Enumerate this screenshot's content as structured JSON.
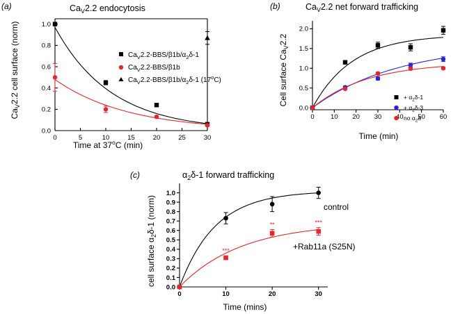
{
  "chart_data": [
    {
      "panel": "(a)",
      "type": "scatter",
      "title": "CaV2.2 endocytosis",
      "xlabel": "Time at 37°C (min)",
      "ylabel": "CaV2.2 cell surface (norm)",
      "xlim": [
        0,
        30
      ],
      "ylim": [
        0,
        1.05
      ],
      "xticks": [
        0,
        5,
        10,
        15,
        20,
        25,
        30
      ],
      "yticks": [
        0.0,
        0.2,
        0.4,
        0.6,
        0.8,
        1.0
      ],
      "xtick_labels": [
        "0",
        "5",
        "10",
        "15",
        "20",
        "25",
        "30"
      ],
      "ytick_labels": [
        "0.0",
        "0.2",
        "0.4",
        "0.6",
        "0.8",
        "1.0"
      ],
      "series": [
        {
          "name": "CaV2.2-BBS/β1b/α2δ-1",
          "marker": "square",
          "color": "#000000",
          "x": [
            0,
            10,
            20,
            30
          ],
          "y": [
            1.0,
            0.45,
            0.24,
            0.06
          ],
          "err": [
            0,
            0.02,
            0.015,
            0.015
          ],
          "fit": {
            "a": 0.97,
            "k": 0.09,
            "c": 0.0
          }
        },
        {
          "name": "CaV2.2-BBS/β1b",
          "marker": "circle",
          "color": "#e8262a",
          "x": [
            0,
            10,
            20,
            30
          ],
          "y": [
            0.5,
            0.2,
            0.13,
            0.05
          ],
          "err": [
            0.13,
            0.03,
            0.01,
            0.01
          ],
          "fit": {
            "a": 0.48,
            "k": 0.07,
            "c": 0.0
          }
        },
        {
          "name": "CaV2.2-BBS/β1b/α2δ-1 (17°C)",
          "marker": "triangle",
          "color": "#000000",
          "x": [
            30
          ],
          "y": [
            0.87
          ],
          "err": [
            0.06
          ]
        }
      ]
    },
    {
      "panel": "(b)",
      "type": "scatter",
      "title": "CaV2.2 net forward trafficking",
      "xlabel": "Time (min)",
      "ylabel": "Cell surface CaV2.2",
      "xlim": [
        0,
        60
      ],
      "ylim": [
        -0.05,
        2.2
      ],
      "xticks": [
        0,
        10,
        20,
        30,
        40,
        50,
        60
      ],
      "yticks": [
        0.0,
        0.5,
        1.0,
        1.5,
        2.0
      ],
      "xtick_labels": [
        "0",
        "10",
        "20",
        "30",
        "40",
        "50",
        "60"
      ],
      "ytick_labels": [
        "0.0",
        "0.5",
        "1.0",
        "1.5",
        "2.0"
      ],
      "series": [
        {
          "name": "+ α2δ-1",
          "marker": "square",
          "color": "#000000",
          "x": [
            0,
            15,
            30,
            45,
            60
          ],
          "y": [
            0.0,
            1.15,
            1.58,
            1.53,
            1.96
          ],
          "err": [
            0,
            0.04,
            0.08,
            0.09,
            0.1
          ],
          "fit": {
            "a": 1.85,
            "k": 0.055,
            "c": 0.0
          }
        },
        {
          "name": "+ α2δ-3",
          "marker": "circle",
          "color": "#2424e6",
          "x": [
            0,
            15,
            30,
            45,
            60
          ],
          "y": [
            0.0,
            0.52,
            0.74,
            1.08,
            1.23
          ],
          "err": [
            0,
            0.03,
            0.04,
            0.05,
            0.06
          ],
          "fit": {
            "a": 1.62,
            "k": 0.025,
            "c": 0.0
          }
        },
        {
          "name": "no α2δ",
          "marker": "circle",
          "color": "#e8262a",
          "x": [
            0,
            15,
            30,
            45,
            60
          ],
          "y": [
            0.0,
            0.48,
            0.87,
            0.99,
            1.0
          ],
          "err": [
            0,
            0.02,
            0.03,
            0.03,
            0.03
          ],
          "fit": {
            "a": 1.15,
            "k": 0.04,
            "c": 0.0
          }
        }
      ]
    },
    {
      "panel": "(c)",
      "type": "scatter",
      "title": "α2δ-1 forward trafficking",
      "xlabel": "Time (mins)",
      "ylabel": "cell surface α2δ-1 (norm)",
      "xlim": [
        0,
        32
      ],
      "ylim": [
        0,
        1.1
      ],
      "xticks": [
        0,
        10,
        20,
        30
      ],
      "yticks": [
        0.0,
        0.1,
        0.2,
        0.3,
        0.4,
        0.5,
        0.6,
        0.7,
        0.8,
        0.9,
        1.0
      ],
      "xtick_labels": [
        "0",
        "10",
        "20",
        "30"
      ],
      "ytick_labels": [
        "0.0",
        "0.1",
        "0.2",
        "0.3",
        "0.4",
        "0.5",
        "0.6",
        "0.7",
        "0.8",
        "0.9",
        "1.0"
      ],
      "series": [
        {
          "name": "control",
          "marker": "circle",
          "color": "#000000",
          "x": [
            0,
            10,
            20,
            30
          ],
          "y": [
            0.0,
            0.73,
            0.88,
            1.0
          ],
          "err": [
            0,
            0.06,
            0.08,
            0.06
          ],
          "fit": {
            "a": 1.02,
            "k": 0.13,
            "c": 0.0
          }
        },
        {
          "name": "+Rab11a (S25N)",
          "marker": "square",
          "color": "#e8262a",
          "x": [
            0,
            10,
            20,
            30
          ],
          "y": [
            0.0,
            0.31,
            0.57,
            0.59
          ],
          "err": [
            0,
            0.02,
            0.04,
            0.04
          ],
          "fit": {
            "a": 0.68,
            "k": 0.075,
            "c": 0.0
          }
        }
      ],
      "annotations": [
        {
          "text": "***",
          "x": 10,
          "y": 0.36,
          "color": "#e8262a"
        },
        {
          "text": "**",
          "x": 20,
          "y": 0.64,
          "color": "#e8262a"
        },
        {
          "text": "***",
          "x": 30,
          "y": 0.66,
          "color": "#e8262a"
        }
      ]
    }
  ],
  "panel_a_title": {
    "pre": "Ca",
    "sub": "V",
    "post": "2.2 endocytosis"
  },
  "panel_a_ylabel": {
    "pre": "Ca",
    "sub": "V",
    "post": "2.2 cell surface (norm)"
  },
  "panel_a_xlabel": {
    "pre": "Time at 37",
    "sup": "o",
    "post": "C (min)"
  },
  "legend_a": [
    {
      "pre": "Ca",
      "sub1": "V",
      "mid": "2.2-BBS/β1b/α",
      "sub2": "2",
      "post": "δ-1",
      "tail": ""
    },
    {
      "pre": "Ca",
      "sub1": "V",
      "mid": "2.2-BBS/β1b",
      "sub2": "",
      "post": "",
      "tail": ""
    },
    {
      "pre": "Ca",
      "sub1": "V",
      "mid": "2.2-BBS/β1b/α",
      "sub2": "2",
      "post": "δ-1 (17",
      "sup": "o",
      "tail": "C)"
    }
  ],
  "panel_b_title": {
    "pre": "Ca",
    "sub": "V",
    "post": "2.2 net forward trafficking"
  },
  "panel_b_ylabel": {
    "pre": "Cell surface Ca",
    "sub": "V",
    "post": "2.2"
  },
  "legend_b": [
    {
      "pre": "+ α",
      "sub": "2",
      "post": "δ-1"
    },
    {
      "pre": "+ α",
      "sub": "2",
      "post": "δ-3"
    },
    {
      "pre": "no α",
      "sub": "2",
      "post": "δ"
    }
  ],
  "panel_c_title": {
    "pre": "α",
    "sub": "2",
    "post": "δ-1 forward trafficking"
  },
  "panel_c_ylabel": {
    "pre": "cell surface α",
    "sub": "2",
    "post": "δ-1 (norm)"
  }
}
